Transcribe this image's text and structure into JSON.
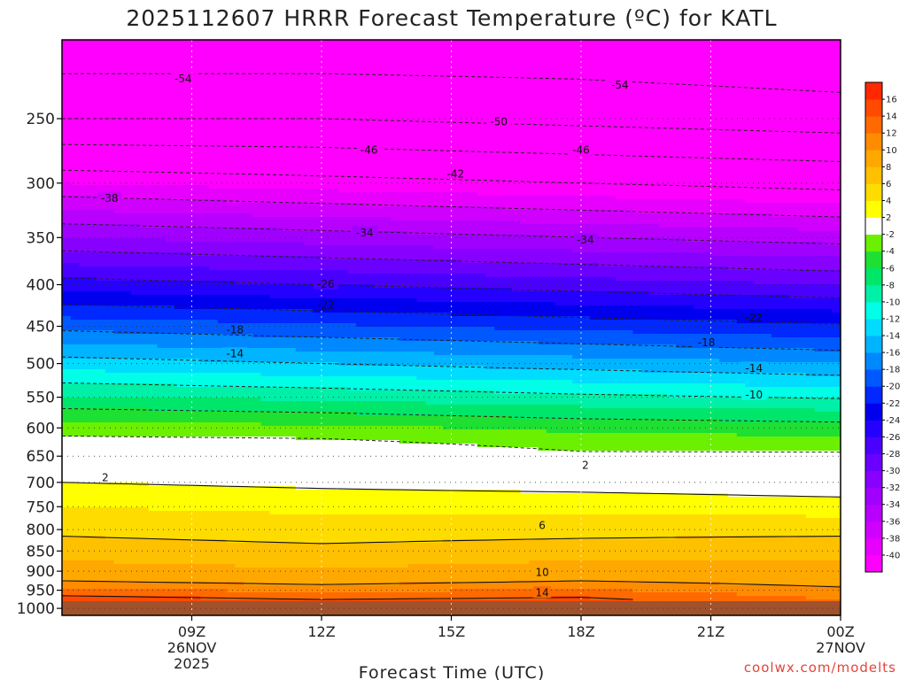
{
  "colors": {
    "land": "#a0522d",
    "freezing_line": "#e0208a"
  },
  "chart_data": {
    "type": "heatmap",
    "title": "2025112607 HRRR Forecast Temperature (ºC) for KATL",
    "xlabel": "Forecast Time (UTC)",
    "ylabel": "",
    "credit": "coolwx.com/modelts",
    "x_range_hours": [
      6,
      24
    ],
    "y_range_hpa": [
      1020,
      200
    ],
    "pressure_ticks": [
      1000,
      950,
      900,
      850,
      800,
      750,
      700,
      650,
      600,
      550,
      500,
      450,
      400,
      350,
      300,
      250
    ],
    "time_ticks": [
      {
        "hour": 9,
        "lines": [
          "09Z",
          "26NOV",
          "2025"
        ]
      },
      {
        "hour": 12,
        "lines": [
          "12Z"
        ]
      },
      {
        "hour": 15,
        "lines": [
          "15Z"
        ]
      },
      {
        "hour": 18,
        "lines": [
          "18Z"
        ]
      },
      {
        "hour": 21,
        "lines": [
          "21Z"
        ]
      },
      {
        "hour": 24,
        "lines": [
          "00Z",
          "27NOV"
        ]
      }
    ],
    "surface_pressure_hpa": 980,
    "colorbar": {
      "levels": [
        -40,
        -38,
        -36,
        -34,
        -32,
        -30,
        -28,
        -26,
        -24,
        -22,
        -20,
        -18,
        -16,
        -14,
        -12,
        -10,
        -8,
        -6,
        -4,
        -2,
        2,
        4,
        6,
        8,
        10,
        12,
        14,
        16
      ],
      "colors": [
        "#ff00ff",
        "#e800ff",
        "#d000ff",
        "#b800ff",
        "#a000ff",
        "#8800ff",
        "#6a00ff",
        "#4a00ff",
        "#2400ff",
        "#0000ee",
        "#0028ff",
        "#0058ff",
        "#0088ff",
        "#00b4ff",
        "#00dcff",
        "#00ffe6",
        "#00f0a8",
        "#00e66a",
        "#1ee032",
        "#6af000",
        "#ffffff",
        "#ffff00",
        "#ffdc00",
        "#ffc000",
        "#ffa800",
        "#ff8c00",
        "#ff6a00",
        "#ff4a00",
        "#ff2800"
      ]
    },
    "temperature_profiles": [
      {
        "hour": 6,
        "points": [
          [
            975,
            15
          ],
          [
            925,
            10
          ],
          [
            850,
            7
          ],
          [
            750,
            4
          ],
          [
            700,
            2
          ],
          [
            650,
            0.5
          ],
          [
            600,
            -3
          ],
          [
            500,
            -13
          ],
          [
            400,
            -25
          ],
          [
            300,
            -40
          ],
          [
            250,
            -50
          ],
          [
            200,
            -57
          ]
        ]
      },
      {
        "hour": 12,
        "points": [
          [
            975,
            14
          ],
          [
            925,
            9
          ],
          [
            850,
            6.5
          ],
          [
            750,
            3.5
          ],
          [
            700,
            1.5
          ],
          [
            650,
            0.5
          ],
          [
            600,
            -3.5
          ],
          [
            500,
            -14
          ],
          [
            400,
            -26
          ],
          [
            300,
            -41
          ],
          [
            250,
            -50
          ],
          [
            200,
            -57
          ]
        ]
      },
      {
        "hour": 18,
        "points": [
          [
            975,
            14.5
          ],
          [
            925,
            10
          ],
          [
            850,
            7
          ],
          [
            750,
            3.5
          ],
          [
            700,
            1
          ],
          [
            650,
            -1.5
          ],
          [
            600,
            -4.5
          ],
          [
            500,
            -15
          ],
          [
            400,
            -27
          ],
          [
            300,
            -42
          ],
          [
            250,
            -51
          ],
          [
            200,
            -57
          ]
        ]
      },
      {
        "hour": 24,
        "points": [
          [
            975,
            12
          ],
          [
            925,
            9
          ],
          [
            850,
            7.5
          ],
          [
            750,
            3
          ],
          [
            700,
            0.5
          ],
          [
            650,
            -1.5
          ],
          [
            600,
            -5
          ],
          [
            500,
            -16
          ],
          [
            400,
            -28
          ],
          [
            300,
            -43
          ],
          [
            250,
            -52
          ],
          [
            200,
            -58
          ]
        ]
      }
    ],
    "contour_labels": [
      {
        "value": "-54",
        "hour": 8.8,
        "p": 223
      },
      {
        "value": "-54",
        "hour": 18.9,
        "p": 227
      },
      {
        "value": "-50",
        "hour": 16.1,
        "p": 252
      },
      {
        "value": "-46",
        "hour": 13.1,
        "p": 273
      },
      {
        "value": "-46",
        "hour": 18.0,
        "p": 273
      },
      {
        "value": "-42",
        "hour": 15.1,
        "p": 292
      },
      {
        "value": "-38",
        "hour": 7.1,
        "p": 313
      },
      {
        "value": "-34",
        "hour": 13.0,
        "p": 345
      },
      {
        "value": "-34",
        "hour": 18.1,
        "p": 352
      },
      {
        "value": "-26",
        "hour": 12.1,
        "p": 399
      },
      {
        "value": "-22",
        "hour": 12.1,
        "p": 423
      },
      {
        "value": "-22",
        "hour": 22.0,
        "p": 439
      },
      {
        "value": "-18",
        "hour": 10.0,
        "p": 454
      },
      {
        "value": "-18",
        "hour": 20.9,
        "p": 471
      },
      {
        "value": "-14",
        "hour": 10.0,
        "p": 486
      },
      {
        "value": "-14",
        "hour": 22.0,
        "p": 506
      },
      {
        "value": "-10",
        "hour": 22.0,
        "p": 546
      },
      {
        "value": "2",
        "hour": 18.1,
        "p": 666
      },
      {
        "value": "2",
        "hour": 7.0,
        "p": 690
      },
      {
        "value": "6",
        "hour": 17.1,
        "p": 790
      },
      {
        "value": "10",
        "hour": 17.1,
        "p": 902
      },
      {
        "value": "14",
        "hour": 17.1,
        "p": 956
      }
    ]
  }
}
